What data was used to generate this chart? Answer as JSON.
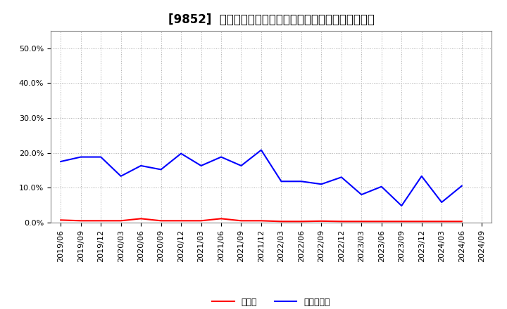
{
  "title": "[9852]  現預金、有利子負債の総資産に対する比率の推移",
  "background_color": "#ffffff",
  "plot_bg_color": "#ffffff",
  "grid_color": "#aaaaaa",
  "x_labels": [
    "2019/06",
    "2019/09",
    "2019/12",
    "2020/03",
    "2020/06",
    "2020/09",
    "2020/12",
    "2021/03",
    "2021/06",
    "2021/09",
    "2021/12",
    "2022/03",
    "2022/06",
    "2022/09",
    "2022/12",
    "2023/03",
    "2023/06",
    "2023/09",
    "2023/12",
    "2024/03",
    "2024/06",
    "2024/09"
  ],
  "cash_values": [
    0.007,
    0.005,
    0.005,
    0.005,
    0.011,
    0.005,
    0.005,
    0.005,
    0.011,
    0.005,
    0.005,
    0.003,
    0.003,
    0.004,
    0.003,
    0.003,
    0.003,
    0.003,
    0.003,
    0.003,
    0.003,
    null
  ],
  "debt_values": [
    0.175,
    0.188,
    0.188,
    0.133,
    0.163,
    0.152,
    0.198,
    0.163,
    0.188,
    0.163,
    0.208,
    0.118,
    0.118,
    0.11,
    0.13,
    0.08,
    0.103,
    0.048,
    0.133,
    0.058,
    0.105,
    null
  ],
  "cash_color": "#ff0000",
  "debt_color": "#0000ff",
  "legend_cash": "現預金",
  "legend_debt": "有利子負債",
  "ylim": [
    0.0,
    0.55
  ],
  "yticks": [
    0.0,
    0.1,
    0.2,
    0.3,
    0.4,
    0.5
  ],
  "title_fontsize": 12,
  "tick_fontsize": 8,
  "legend_fontsize": 9,
  "line_width": 1.5
}
